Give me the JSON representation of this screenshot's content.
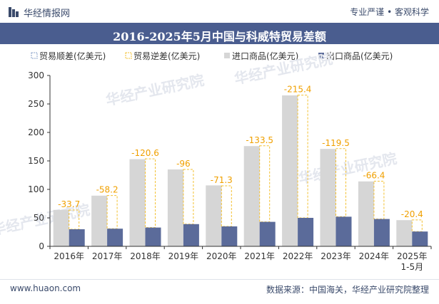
{
  "header": {
    "logo_text": "华经情报网",
    "right_text": "专业严谨 • 客观科学"
  },
  "title": "2016-2025年5月中国与科威特贸易差额",
  "footer": {
    "website": "www.huaon.com",
    "source": "数据来源：中国海关，华经产业研究院整理"
  },
  "watermark": "华经产业研究院",
  "colors": {
    "import": "#d6d6d6",
    "export": "#5b6b9a",
    "deficit_border": "#f3c030",
    "surplus_border": "#8aa0c8",
    "title_band": "#4a5d8f",
    "label": "#f0a000"
  },
  "chart_data": {
    "type": "bar",
    "categories": [
      "2016年",
      "2017年",
      "2018年",
      "2019年",
      "2020年",
      "2021年",
      "2022年",
      "2023年",
      "2024年",
      "2025年 1-5月"
    ],
    "series": [
      {
        "name": "贸易顺差(亿美元)",
        "values": [
          null,
          null,
          null,
          null,
          null,
          null,
          null,
          null,
          null,
          null
        ]
      },
      {
        "name": "贸易逆差(亿美元)",
        "values": [
          -33.7,
          -58.2,
          -120.6,
          -96,
          -71.3,
          -133.5,
          -215.4,
          -119.5,
          -66.4,
          -20.4
        ]
      },
      {
        "name": "进口商品(亿美元)",
        "values": [
          64,
          89,
          153,
          135,
          107,
          176,
          265,
          171,
          114,
          46
        ]
      },
      {
        "name": "出口商品(亿美元)",
        "values": [
          30,
          31,
          33,
          39,
          35,
          43,
          50,
          52,
          48,
          26
        ]
      }
    ],
    "data_labels": [
      "-33.7",
      "-58.2",
      "-120.6",
      "-96",
      "-71.3",
      "-133.5",
      "-215.4",
      "-119.5",
      "-66.4",
      "-20.4"
    ],
    "y_ticks": [
      "0",
      "50",
      "100",
      "150",
      "200",
      "250",
      "300"
    ],
    "ylim": [
      0,
      300
    ],
    "grid": false,
    "legend_position": "top"
  }
}
